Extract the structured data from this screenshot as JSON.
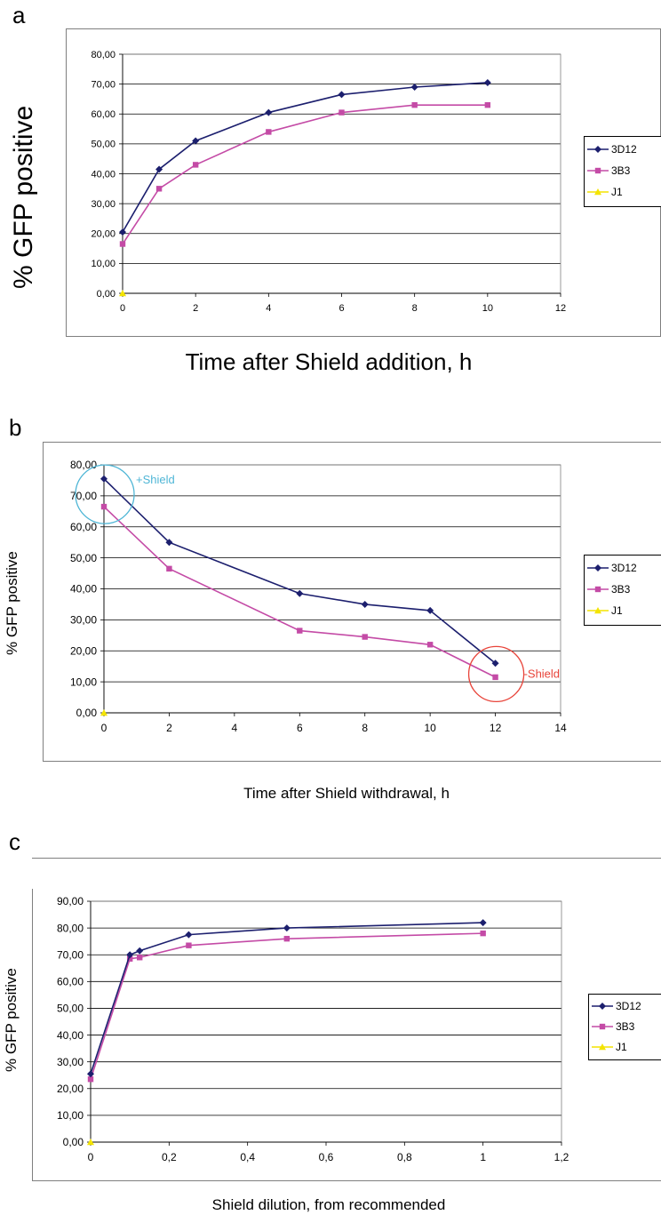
{
  "panels": [
    {
      "letter": "a",
      "ylabel": "% GFP positive",
      "xlabel": "Time after Shield addition, h"
    },
    {
      "letter": "b",
      "ylabel": "% GFP positive",
      "xlabel": "Time after Shield withdrawal, h",
      "annotations": [
        {
          "text": "+Shield",
          "color": "#4fb6d6"
        },
        {
          "text": "-Shield",
          "color": "#e8443a"
        }
      ]
    },
    {
      "letter": "c",
      "ylabel": "% GFP positive",
      "xlabel": "Shield dilution, from recommended"
    }
  ],
  "series_style": {
    "3D12": {
      "color": "#1c1f6e",
      "marker": "diamond"
    },
    "3B3": {
      "color": "#c44ba6",
      "marker": "square"
    },
    "J1": {
      "color": "#f4e400",
      "marker": "triangle"
    }
  },
  "chart_data": [
    {
      "type": "line",
      "xlim": [
        0,
        12
      ],
      "xticks": [
        "0",
        "2",
        "4",
        "6",
        "8",
        "10",
        "12"
      ],
      "xtick_values": [
        0,
        2,
        4,
        6,
        8,
        10,
        12
      ],
      "ylim": [
        0,
        80
      ],
      "yticks": [
        "0,00",
        "10,00",
        "20,00",
        "30,00",
        "40,00",
        "50,00",
        "60,00",
        "70,00",
        "80,00"
      ],
      "ytick_values": [
        0,
        10,
        20,
        30,
        40,
        50,
        60,
        70,
        80
      ],
      "grid": "horizontal",
      "legend": "right",
      "series": [
        {
          "name": "3D12",
          "x": [
            0,
            1,
            2,
            4,
            6,
            8,
            10
          ],
          "y": [
            20.5,
            41.5,
            51,
            60.5,
            66.5,
            69,
            70.5
          ]
        },
        {
          "name": "3B3",
          "x": [
            0,
            1,
            2,
            4,
            6,
            8,
            10
          ],
          "y": [
            16.5,
            35,
            43,
            54,
            60.5,
            63,
            63
          ]
        },
        {
          "name": "J1",
          "x": [
            0
          ],
          "y": [
            0
          ]
        }
      ]
    },
    {
      "type": "line",
      "xlim": [
        0,
        14
      ],
      "xticks": [
        "0",
        "2",
        "4",
        "6",
        "8",
        "10",
        "12",
        "14"
      ],
      "xtick_values": [
        0,
        2,
        4,
        6,
        8,
        10,
        12,
        14
      ],
      "ylim": [
        0,
        80
      ],
      "yticks": [
        "0,00",
        "10,00",
        "20,00",
        "30,00",
        "40,00",
        "50,00",
        "60,00",
        "70,00",
        "80,00"
      ],
      "ytick_values": [
        0,
        10,
        20,
        30,
        40,
        50,
        60,
        70,
        80
      ],
      "grid": "horizontal",
      "legend": "right",
      "series": [
        {
          "name": "3D12",
          "x": [
            0,
            2,
            6,
            8,
            10,
            12
          ],
          "y": [
            75.5,
            55,
            38.5,
            35,
            33,
            16
          ]
        },
        {
          "name": "3B3",
          "x": [
            0,
            2,
            6,
            8,
            10,
            12
          ],
          "y": [
            66.5,
            46.5,
            26.5,
            24.5,
            22,
            11.5
          ]
        },
        {
          "name": "J1",
          "x": [
            0
          ],
          "y": [
            0
          ]
        }
      ]
    },
    {
      "type": "line",
      "xlim": [
        0,
        1.2
      ],
      "xticks": [
        "0",
        "0,2",
        "0,4",
        "0,6",
        "0,8",
        "1",
        "1,2"
      ],
      "xtick_values": [
        0,
        0.2,
        0.4,
        0.6,
        0.8,
        1,
        1.2
      ],
      "ylim": [
        0,
        90
      ],
      "yticks": [
        "0,00",
        "10,00",
        "20,00",
        "30,00",
        "40,00",
        "50,00",
        "60,00",
        "70,00",
        "80,00",
        "90,00"
      ],
      "ytick_values": [
        0,
        10,
        20,
        30,
        40,
        50,
        60,
        70,
        80,
        90
      ],
      "grid": "horizontal",
      "legend": "right",
      "series": [
        {
          "name": "3D12",
          "x": [
            0,
            0.1,
            0.125,
            0.25,
            0.5,
            1
          ],
          "y": [
            25.5,
            70,
            71.5,
            77.5,
            80,
            82
          ]
        },
        {
          "name": "3B3",
          "x": [
            0,
            0.1,
            0.125,
            0.25,
            0.5,
            1
          ],
          "y": [
            23.5,
            68.5,
            69,
            73.5,
            76,
            78
          ]
        },
        {
          "name": "J1",
          "x": [
            0
          ],
          "y": [
            0
          ]
        }
      ]
    }
  ]
}
